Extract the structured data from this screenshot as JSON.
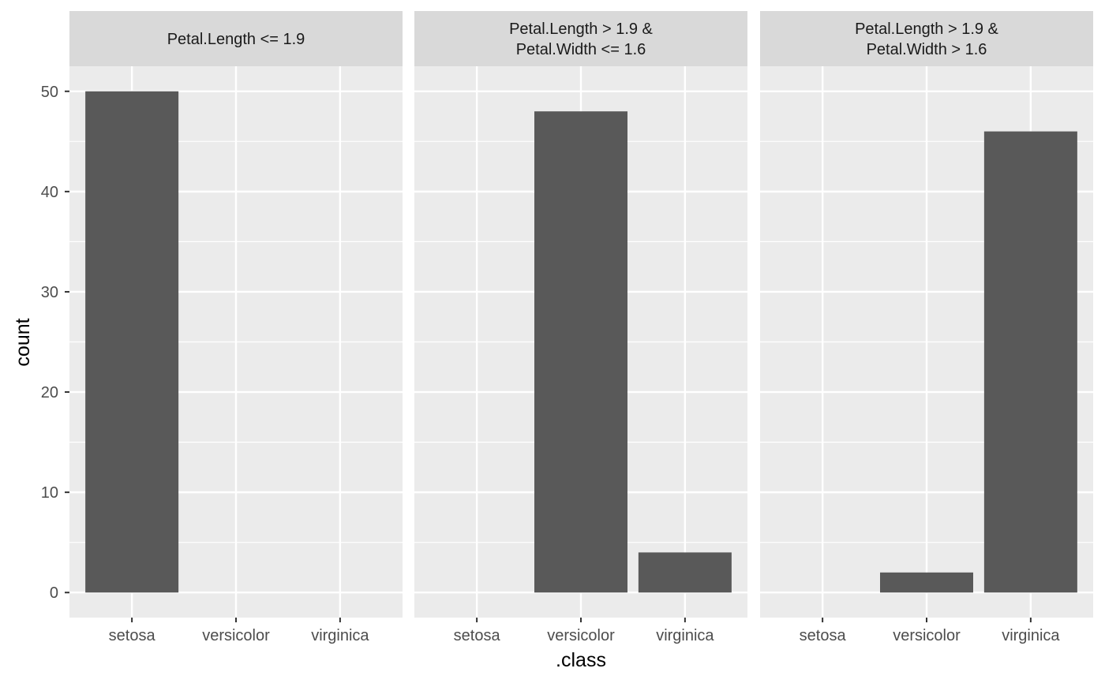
{
  "chart_data": {
    "type": "bar",
    "facets": [
      {
        "strip": [
          "Petal.Length <= 1.9"
        ],
        "categories": [
          "setosa",
          "versicolor",
          "virginica"
        ],
        "values": [
          50,
          0,
          0
        ]
      },
      {
        "strip": [
          "Petal.Length > 1.9 &",
          "Petal.Width <= 1.6"
        ],
        "categories": [
          "setosa",
          "versicolor",
          "virginica"
        ],
        "values": [
          0,
          48,
          4
        ]
      },
      {
        "strip": [
          "Petal.Length > 1.9 &",
          "Petal.Width > 1.6"
        ],
        "categories": [
          "setosa",
          "versicolor",
          "virginica"
        ],
        "values": [
          0,
          2,
          46
        ]
      }
    ],
    "xlabel": ".class",
    "ylabel": "count",
    "ylim": [
      -2.5,
      52.5
    ],
    "yticks": [
      0,
      10,
      20,
      30,
      40,
      50
    ],
    "grid": true,
    "colors": {
      "bar": "#595959",
      "panel": "#ebebeb",
      "strip": "#d9d9d9",
      "grid": "#ffffff",
      "text": "#4d4d4d",
      "title": "#000000"
    }
  }
}
